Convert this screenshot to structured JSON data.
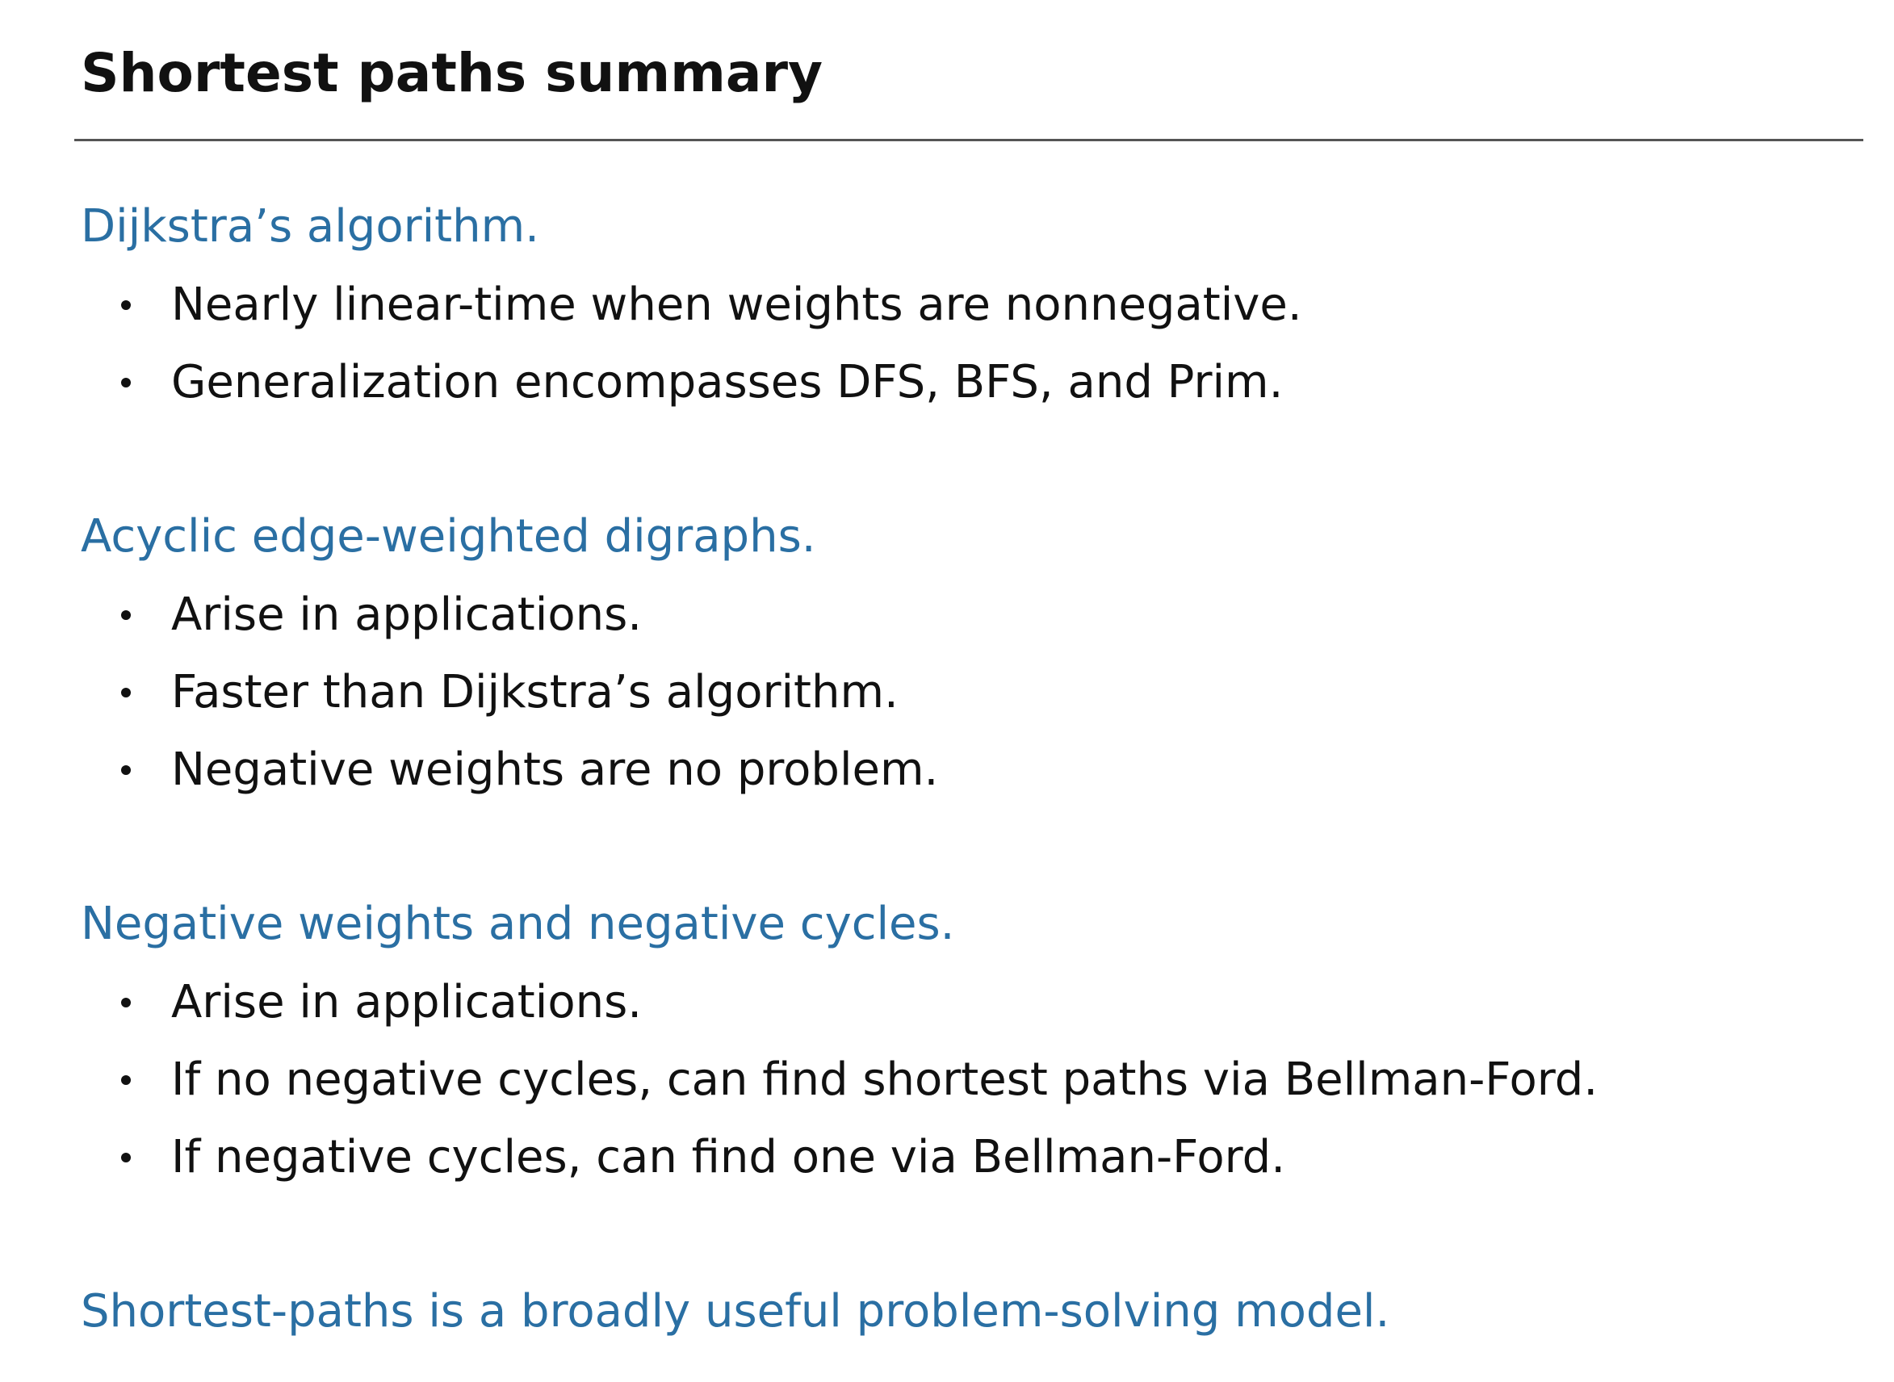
{
  "title": "Shortest paths summary",
  "sections": [
    {
      "heading": "Dijkstra’s algorithm.",
      "bullets": [
        "Nearly linear-time when weights are nonnegative.",
        "Generalization encompasses DFS, BFS, and Prim."
      ]
    },
    {
      "heading": "Acyclic edge-weighted digraphs.",
      "bullets": [
        "Arise in applications.",
        "Faster than Dijkstra’s algorithm.",
        "Negative weights are no problem."
      ]
    },
    {
      "heading": "Negative weights and negative cycles.",
      "bullets": [
        "Arise in applications.",
        "If no negative cycles, can find shortest paths via Bellman-Ford.",
        "If negative cycles, can find one via Bellman-Ford."
      ]
    }
  ],
  "conclusion": "Shortest-paths is a broadly useful problem-solving model.",
  "colors": {
    "heading": "#2a6fa3",
    "body_text": "#111111",
    "rule": "#555555"
  }
}
